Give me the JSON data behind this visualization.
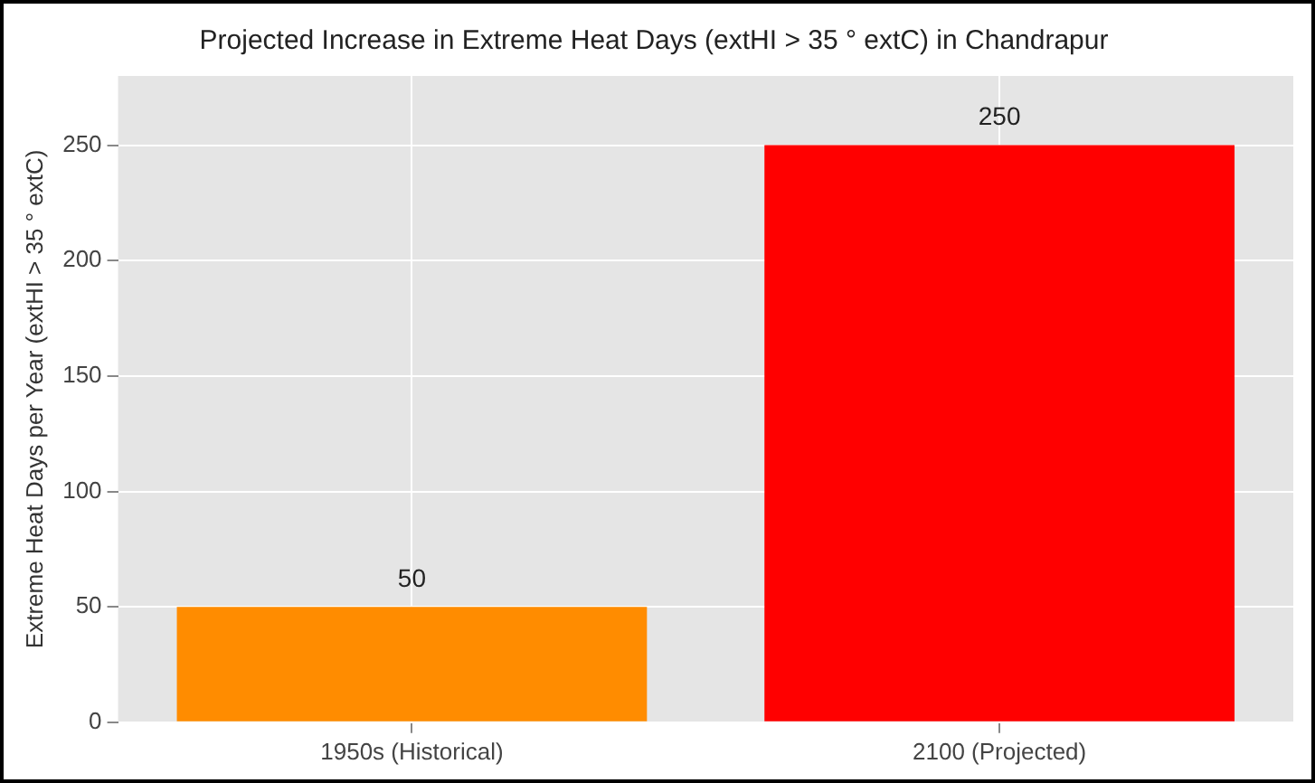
{
  "chart_data": {
    "type": "bar",
    "title": "Projected Increase in Extreme Heat Days (extHI > 35 ° extC) in Chandrapur",
    "ylabel": "Extreme Heat Days per Year (extHI > 35 ° extC)",
    "categories": [
      "1950s (Historical)",
      "2100 (Projected)"
    ],
    "values": [
      50,
      250
    ],
    "colors": [
      "#ff8c00",
      "#ff0000"
    ],
    "ylim": [
      0,
      280
    ],
    "yticks": [
      0,
      50,
      100,
      150,
      200,
      250
    ],
    "grid": true,
    "data_labels": true,
    "legend": false
  }
}
